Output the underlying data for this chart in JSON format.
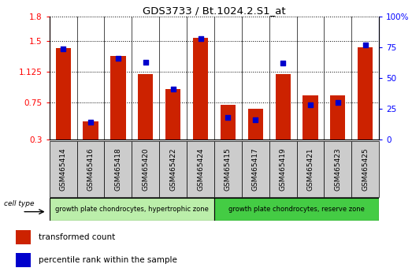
{
  "title": "GDS3733 / Bt.1024.2.S1_at",
  "samples": [
    "GSM465414",
    "GSM465416",
    "GSM465418",
    "GSM465420",
    "GSM465422",
    "GSM465424",
    "GSM465415",
    "GSM465417",
    "GSM465419",
    "GSM465421",
    "GSM465423",
    "GSM465425"
  ],
  "red_values": [
    1.42,
    0.52,
    1.32,
    1.1,
    0.92,
    1.54,
    0.72,
    0.68,
    1.1,
    0.84,
    0.84,
    1.43
  ],
  "blue_values": [
    74,
    14,
    66,
    63,
    41,
    82,
    18,
    16,
    62,
    28,
    30,
    77
  ],
  "ylim_left": [
    0.3,
    1.8
  ],
  "ylim_right": [
    0,
    100
  ],
  "yticks_left": [
    0.3,
    0.75,
    1.125,
    1.5,
    1.8
  ],
  "yticks_right": [
    0,
    25,
    50,
    75,
    100
  ],
  "ytick_labels_left": [
    "0.3",
    "0.75",
    "1.125",
    "1.5",
    "1.8"
  ],
  "ytick_labels_right": [
    "0",
    "25",
    "50",
    "75",
    "100%"
  ],
  "group1_label": "growth plate chondrocytes, hypertrophic zone",
  "group2_label": "growth plate chondrocytes, reserve zone",
  "group1_count": 6,
  "group2_count": 6,
  "cell_type_label": "cell type",
  "legend_red": "transformed count",
  "legend_blue": "percentile rank within the sample",
  "bar_color": "#cc2200",
  "blue_color": "#0000cc",
  "group1_color": "#bbeeaa",
  "group2_color": "#44cc44",
  "bar_width": 0.55
}
